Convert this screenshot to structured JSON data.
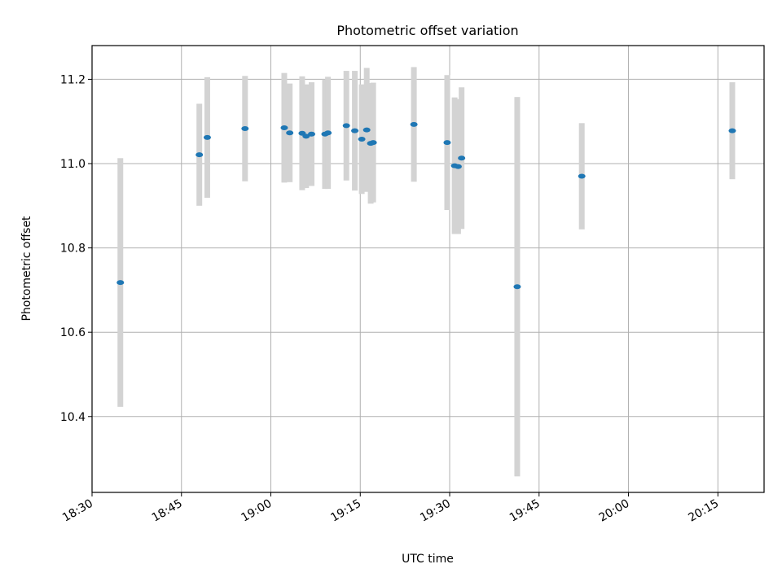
{
  "chart_data": {
    "type": "scatter",
    "title": "Photometric offset variation",
    "xlabel": "UTC time",
    "ylabel": "Photometric offset",
    "x_unit": "time of day (hh:mm:ss)",
    "xlim": [
      "18:30:00",
      "20:22:45"
    ],
    "ylim": [
      10.22,
      11.28
    ],
    "x_ticks": [
      "18:30",
      "18:45",
      "19:00",
      "19:15",
      "19:30",
      "19:45",
      "20:00",
      "20:15"
    ],
    "y_ticks": [
      10.4,
      10.6,
      10.8,
      11.0,
      11.2
    ],
    "y_tick_labels": [
      "10.4",
      "10.6",
      "10.8",
      "11.0",
      "11.2"
    ],
    "grid": true,
    "errorbar_color": "#d3d3d3",
    "point_color": "#1f77b4",
    "points": [
      {
        "t": "18:34:45",
        "y": 10.718,
        "err": 0.295
      },
      {
        "t": "18:48:00",
        "y": 11.021,
        "err": 0.121
      },
      {
        "t": "18:49:20",
        "y": 11.062,
        "err": 0.143
      },
      {
        "t": "18:55:40",
        "y": 11.083,
        "err": 0.125
      },
      {
        "t": "19:02:15",
        "y": 11.085,
        "err": 0.13
      },
      {
        "t": "19:03:10",
        "y": 11.073,
        "err": 0.117
      },
      {
        "t": "19:05:15",
        "y": 11.072,
        "err": 0.135
      },
      {
        "t": "19:05:55",
        "y": 11.065,
        "err": 0.123
      },
      {
        "t": "19:06:50",
        "y": 11.07,
        "err": 0.123
      },
      {
        "t": "19:09:05",
        "y": 11.07,
        "err": 0.13
      },
      {
        "t": "19:09:35",
        "y": 11.073,
        "err": 0.133
      },
      {
        "t": "19:12:40",
        "y": 11.09,
        "err": 0.13
      },
      {
        "t": "19:14:05",
        "y": 11.078,
        "err": 0.142
      },
      {
        "t": "19:15:15",
        "y": 11.058,
        "err": 0.13
      },
      {
        "t": "19:16:05",
        "y": 11.08,
        "err": 0.147
      },
      {
        "t": "19:16:45",
        "y": 11.048,
        "err": 0.143
      },
      {
        "t": "19:17:10",
        "y": 11.05,
        "err": 0.142
      },
      {
        "t": "19:24:00",
        "y": 11.093,
        "err": 0.136
      },
      {
        "t": "19:29:35",
        "y": 11.05,
        "err": 0.16
      },
      {
        "t": "19:30:50",
        "y": 10.995,
        "err": 0.162
      },
      {
        "t": "19:31:25",
        "y": 10.993,
        "err": 0.16
      },
      {
        "t": "19:32:00",
        "y": 11.013,
        "err": 0.168
      },
      {
        "t": "19:41:20",
        "y": 10.708,
        "err": 0.45
      },
      {
        "t": "19:52:10",
        "y": 10.97,
        "err": 0.126
      },
      {
        "t": "20:17:25",
        "y": 11.078,
        "err": 0.115
      }
    ]
  }
}
